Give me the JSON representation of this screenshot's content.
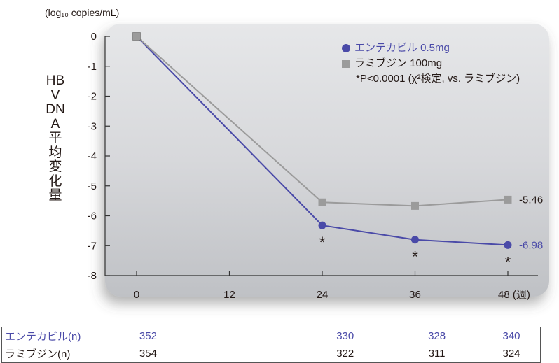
{
  "chart_data": {
    "type": "line",
    "y_unit": "(log₁₀ copies/mL)",
    "ylabel": "HBV DNA 平均変化量",
    "x_ticks": [
      "0",
      "12",
      "24",
      "36",
      "48 (週)"
    ],
    "y_ticks": [
      "0",
      "-1",
      "-2",
      "-3",
      "-4",
      "-5",
      "-6",
      "-7",
      "-8"
    ],
    "xlim": [
      0,
      48
    ],
    "ylim": [
      -8,
      0
    ],
    "series": [
      {
        "name": "エンテカビル 0.5mg",
        "color": "#4a4aa8",
        "marker": "circle",
        "x": [
          0,
          24,
          36,
          48
        ],
        "y": [
          0,
          -6.32,
          -6.8,
          -6.98
        ]
      },
      {
        "name": "ラミブジン 100mg",
        "color": "#9b9b9b",
        "marker": "square",
        "x": [
          0,
          24,
          36,
          48
        ],
        "y": [
          0,
          -5.55,
          -5.67,
          -5.46
        ]
      }
    ],
    "end_labels": {
      "ent": "-6.98",
      "lam": "-5.46"
    },
    "asterisk": "*",
    "asterisk_x": [
      24,
      36,
      48
    ],
    "footnote": "*P<0.0001 (χ²検定, vs. ラミブジン)",
    "grid": false,
    "legend_position": "top-right"
  },
  "n_table": {
    "rows": [
      {
        "label": "エンテカビル(n)",
        "values": [
          "352",
          "330",
          "328",
          "340"
        ]
      },
      {
        "label": "ラミブジン(n)",
        "values": [
          "354",
          "322",
          "311",
          "324"
        ]
      }
    ]
  }
}
